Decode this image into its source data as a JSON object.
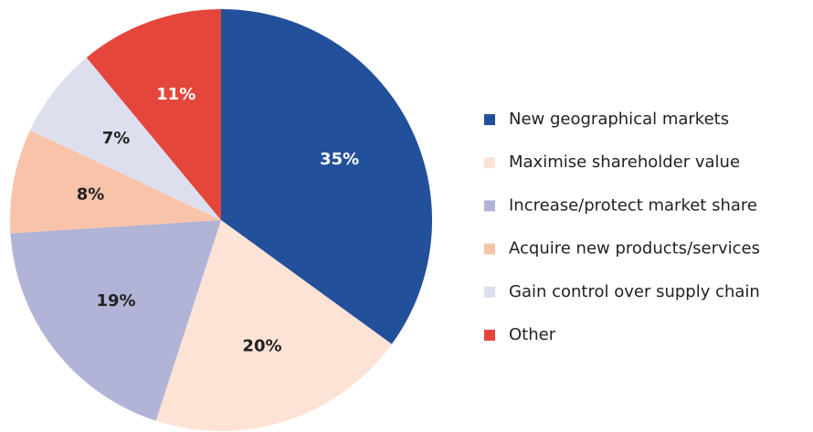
{
  "chart_data": {
    "type": "pie",
    "categories": [
      "New geographical markets",
      "Maximise shareholder value",
      "Increase/protect market share",
      "Acquire new products/services",
      "Gain control over supply chain",
      "Other"
    ],
    "values": [
      35,
      20,
      19,
      8,
      7,
      11
    ],
    "value_labels": [
      "35%",
      "20%",
      "19%",
      "8%",
      "7%",
      "11%"
    ],
    "colors": [
      "#23509b",
      "#fde3d6",
      "#b1b4d6",
      "#f8c3a8",
      "#dddfee",
      "#e4463c"
    ],
    "legend": "right"
  }
}
